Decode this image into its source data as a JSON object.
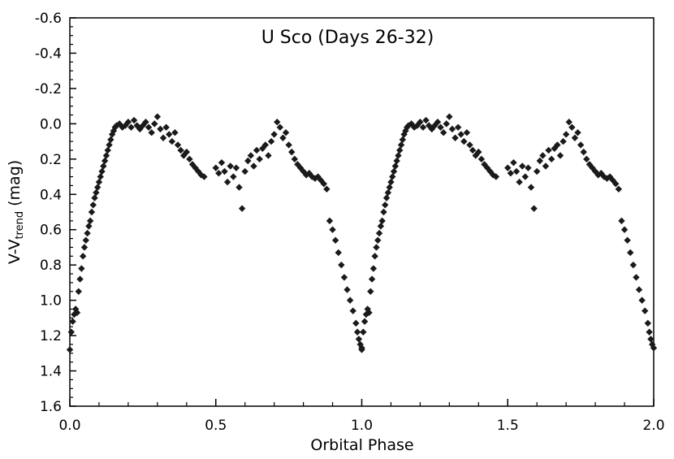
{
  "chart_data": {
    "type": "scatter",
    "title": "U Sco (Days 26-32)",
    "xlabel": "Orbital Phase",
    "ylabel": {
      "base": "V-V",
      "subscript": "trend",
      "suffix": " (mag)"
    },
    "xlim": [
      0.0,
      2.0
    ],
    "ylim": [
      1.6,
      -0.6
    ],
    "y_inverted": true,
    "x_ticks": [
      "0.0",
      "0.5",
      "1.0",
      "1.5",
      "2.0"
    ],
    "y_ticks": [
      "-0.6",
      "-0.4",
      "-0.2",
      "0.0",
      "0.2",
      "0.4",
      "0.6",
      "0.8",
      "1.0",
      "1.2",
      "1.4",
      "1.6"
    ],
    "marker": "diamond",
    "marker_color": "#1a1a1a",
    "period_repeat": 1.0,
    "series": [
      {
        "points": [
          [
            0.0,
            1.28
          ],
          [
            0.005,
            1.18
          ],
          [
            0.01,
            1.12
          ],
          [
            0.015,
            1.08
          ],
          [
            0.02,
            1.05
          ],
          [
            0.025,
            1.07
          ],
          [
            0.03,
            0.95
          ],
          [
            0.035,
            0.88
          ],
          [
            0.04,
            0.82
          ],
          [
            0.045,
            0.75
          ],
          [
            0.05,
            0.7
          ],
          [
            0.055,
            0.66
          ],
          [
            0.06,
            0.62
          ],
          [
            0.065,
            0.58
          ],
          [
            0.07,
            0.55
          ],
          [
            0.075,
            0.5
          ],
          [
            0.08,
            0.46
          ],
          [
            0.085,
            0.42
          ],
          [
            0.09,
            0.39
          ],
          [
            0.095,
            0.36
          ],
          [
            0.1,
            0.33
          ],
          [
            0.105,
            0.3
          ],
          [
            0.11,
            0.27
          ],
          [
            0.115,
            0.24
          ],
          [
            0.12,
            0.21
          ],
          [
            0.125,
            0.18
          ],
          [
            0.13,
            0.15
          ],
          [
            0.135,
            0.12
          ],
          [
            0.14,
            0.09
          ],
          [
            0.145,
            0.06
          ],
          [
            0.15,
            0.04
          ],
          [
            0.155,
            0.02
          ],
          [
            0.16,
            0.01
          ],
          [
            0.17,
            0.0
          ],
          [
            0.18,
            0.02
          ],
          [
            0.19,
            0.01
          ],
          [
            0.2,
            -0.01
          ],
          [
            0.21,
            0.02
          ],
          [
            0.22,
            -0.02
          ],
          [
            0.23,
            0.01
          ],
          [
            0.24,
            0.03
          ],
          [
            0.25,
            0.01
          ],
          [
            0.26,
            -0.01
          ],
          [
            0.27,
            0.02
          ],
          [
            0.28,
            0.05
          ],
          [
            0.29,
            0.0
          ],
          [
            0.3,
            -0.04
          ],
          [
            0.31,
            0.03
          ],
          [
            0.32,
            0.08
          ],
          [
            0.33,
            0.02
          ],
          [
            0.34,
            0.06
          ],
          [
            0.35,
            0.1
          ],
          [
            0.36,
            0.05
          ],
          [
            0.37,
            0.12
          ],
          [
            0.38,
            0.15
          ],
          [
            0.39,
            0.18
          ],
          [
            0.4,
            0.16
          ],
          [
            0.41,
            0.2
          ],
          [
            0.42,
            0.23
          ],
          [
            0.43,
            0.25
          ],
          [
            0.44,
            0.27
          ],
          [
            0.45,
            0.29
          ],
          [
            0.46,
            0.3
          ],
          [
            0.5,
            0.25
          ],
          [
            0.51,
            0.28
          ],
          [
            0.52,
            0.22
          ],
          [
            0.53,
            0.27
          ],
          [
            0.54,
            0.33
          ],
          [
            0.55,
            0.24
          ],
          [
            0.56,
            0.3
          ],
          [
            0.57,
            0.25
          ],
          [
            0.58,
            0.36
          ],
          [
            0.59,
            0.48
          ],
          [
            0.6,
            0.27
          ],
          [
            0.61,
            0.21
          ],
          [
            0.62,
            0.18
          ],
          [
            0.63,
            0.24
          ],
          [
            0.64,
            0.15
          ],
          [
            0.65,
            0.2
          ],
          [
            0.66,
            0.14
          ],
          [
            0.67,
            0.12
          ],
          [
            0.68,
            0.18
          ],
          [
            0.69,
            0.1
          ],
          [
            0.7,
            0.06
          ],
          [
            0.71,
            -0.01
          ],
          [
            0.72,
            0.02
          ],
          [
            0.73,
            0.08
          ],
          [
            0.74,
            0.05
          ],
          [
            0.75,
            0.12
          ],
          [
            0.76,
            0.16
          ],
          [
            0.77,
            0.2
          ],
          [
            0.78,
            0.23
          ],
          [
            0.79,
            0.25
          ],
          [
            0.8,
            0.27
          ],
          [
            0.81,
            0.29
          ],
          [
            0.82,
            0.28
          ],
          [
            0.83,
            0.3
          ],
          [
            0.84,
            0.31
          ],
          [
            0.85,
            0.3
          ],
          [
            0.86,
            0.32
          ],
          [
            0.87,
            0.34
          ],
          [
            0.88,
            0.37
          ],
          [
            0.89,
            0.55
          ],
          [
            0.9,
            0.6
          ],
          [
            0.91,
            0.66
          ],
          [
            0.92,
            0.73
          ],
          [
            0.93,
            0.8
          ],
          [
            0.94,
            0.87
          ],
          [
            0.95,
            0.94
          ],
          [
            0.96,
            1.0
          ],
          [
            0.97,
            1.06
          ],
          [
            0.98,
            1.13
          ],
          [
            0.985,
            1.18
          ],
          [
            0.99,
            1.22
          ],
          [
            0.995,
            1.25
          ],
          [
            1.0,
            1.27
          ]
        ]
      }
    ]
  }
}
